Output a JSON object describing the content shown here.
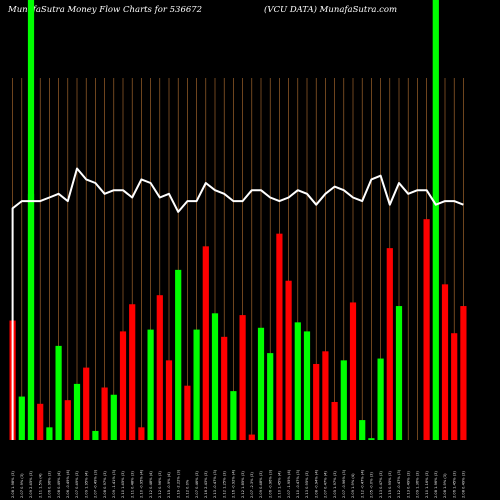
{
  "title": {
    "left": "MunafaSutra  Money Flow  Charts for 536672",
    "right": "(VCU DATA) MunafaSutra.com"
  },
  "colors": {
    "background": "#000000",
    "up_bar": "#00ff00",
    "down_bar": "#ff0000",
    "grid": "#b87333",
    "line": "#ffffff"
  },
  "chart_data": {
    "type": "bar",
    "grid": true,
    "ylim": [
      0,
      100
    ],
    "overlay_line": true,
    "categories": [
      "2.08 1.98% (3)",
      "2.07 0.9% (3)",
      "2.09 2.45% (3)",
      "2.11 1.5% (4)",
      "2.06 0.96% (3)",
      "2.08 0.49% (4)",
      "2.06 -0.49% (4)",
      "2.07 0.49% (3)",
      "2.09 1.95% (4)",
      "2.07 -0.49% (3)",
      "2.08 0.97% (3)",
      "2.09 -1.41% (3)",
      "2.10 1.45% (3)",
      "2.11 0.48% (3)",
      "2.10 -0.95% (4)",
      "2.12 0.48% (4)",
      "2.12 0.96% (3)",
      "2.15 -0.9% (4)",
      "2.19 -2.22% (3)",
      "2.12 0.0%",
      "2.07 0.46% (3)",
      "2.16 2.43% (3)",
      "2.13 -0.47% (3)",
      "2.12 1.25% (3)",
      "2.16 -0.92% (4)",
      "2.12 1.85% (3)",
      "2.07 -2.3% (3)",
      "2.09 0.48% (3)",
      "2.06 -0.96% (3)",
      "2.10 1.45% (4)",
      "2.07 -1.95% (4)",
      "2.10 -0.47% (3)",
      "2.13 0.95% (3)",
      "2.08 -0.94% (4)",
      "2.07 0.47% (4)",
      "2.05 1.97% (3)",
      "2.07 -0.96% (3)",
      "2.09 1.9% (4)",
      "2.12 -0.47% (4)",
      "2.05 -0.0% (3)",
      "2.13 0.47% (3)",
      "2.15 0.95% (3)",
      "2.12 -0.47% (3)",
      "2.13 0.49% (3)",
      "2.09 1.36% (3)",
      "2.10 1.16% (3)",
      "2.08 1.96% (3)",
      "2.08 1.9% (3)",
      "2.06 1.45% (3)",
      "2.08 0.49% (3)"
    ],
    "direction": [
      "down",
      "up",
      "up",
      "down",
      "up",
      "up",
      "down",
      "up",
      "down",
      "up",
      "down",
      "up",
      "down",
      "down",
      "down",
      "up",
      "down",
      "down",
      "up",
      "down",
      "up",
      "down",
      "up",
      "down",
      "up",
      "down",
      "down",
      "up",
      "up",
      "down",
      "down",
      "up",
      "up",
      "down",
      "down",
      "down",
      "up",
      "down",
      "up",
      "up",
      "up",
      "down",
      "up",
      "down",
      "down",
      "down",
      "up",
      "down",
      "down",
      "down"
    ],
    "values": [
      33,
      12,
      68,
      10,
      3.5,
      26,
      11,
      15.5,
      20,
      2.5,
      14.5,
      12.5,
      30,
      37.5,
      3.5,
      30.5,
      40,
      22,
      47,
      15,
      30.5,
      53.5,
      35,
      28.5,
      13.5,
      34.5,
      1.5,
      31,
      24,
      57,
      44,
      32.5,
      30,
      21,
      24.5,
      10.5,
      22,
      38,
      5.5,
      0.5,
      22.5,
      53,
      37,
      0,
      0,
      61,
      0,
      43,
      29.5,
      37
    ],
    "line_values": [
      64,
      66,
      66,
      66,
      67,
      68,
      66,
      75,
      72,
      71,
      68,
      69,
      69,
      67,
      72,
      71,
      67,
      68,
      63,
      66,
      66,
      71,
      69,
      68,
      66,
      66,
      69,
      69,
      67,
      66,
      67,
      69,
      68,
      65,
      68,
      70,
      69,
      67,
      66,
      72,
      73,
      65,
      71,
      68,
      69,
      69,
      65,
      66,
      66,
      65
    ]
  }
}
